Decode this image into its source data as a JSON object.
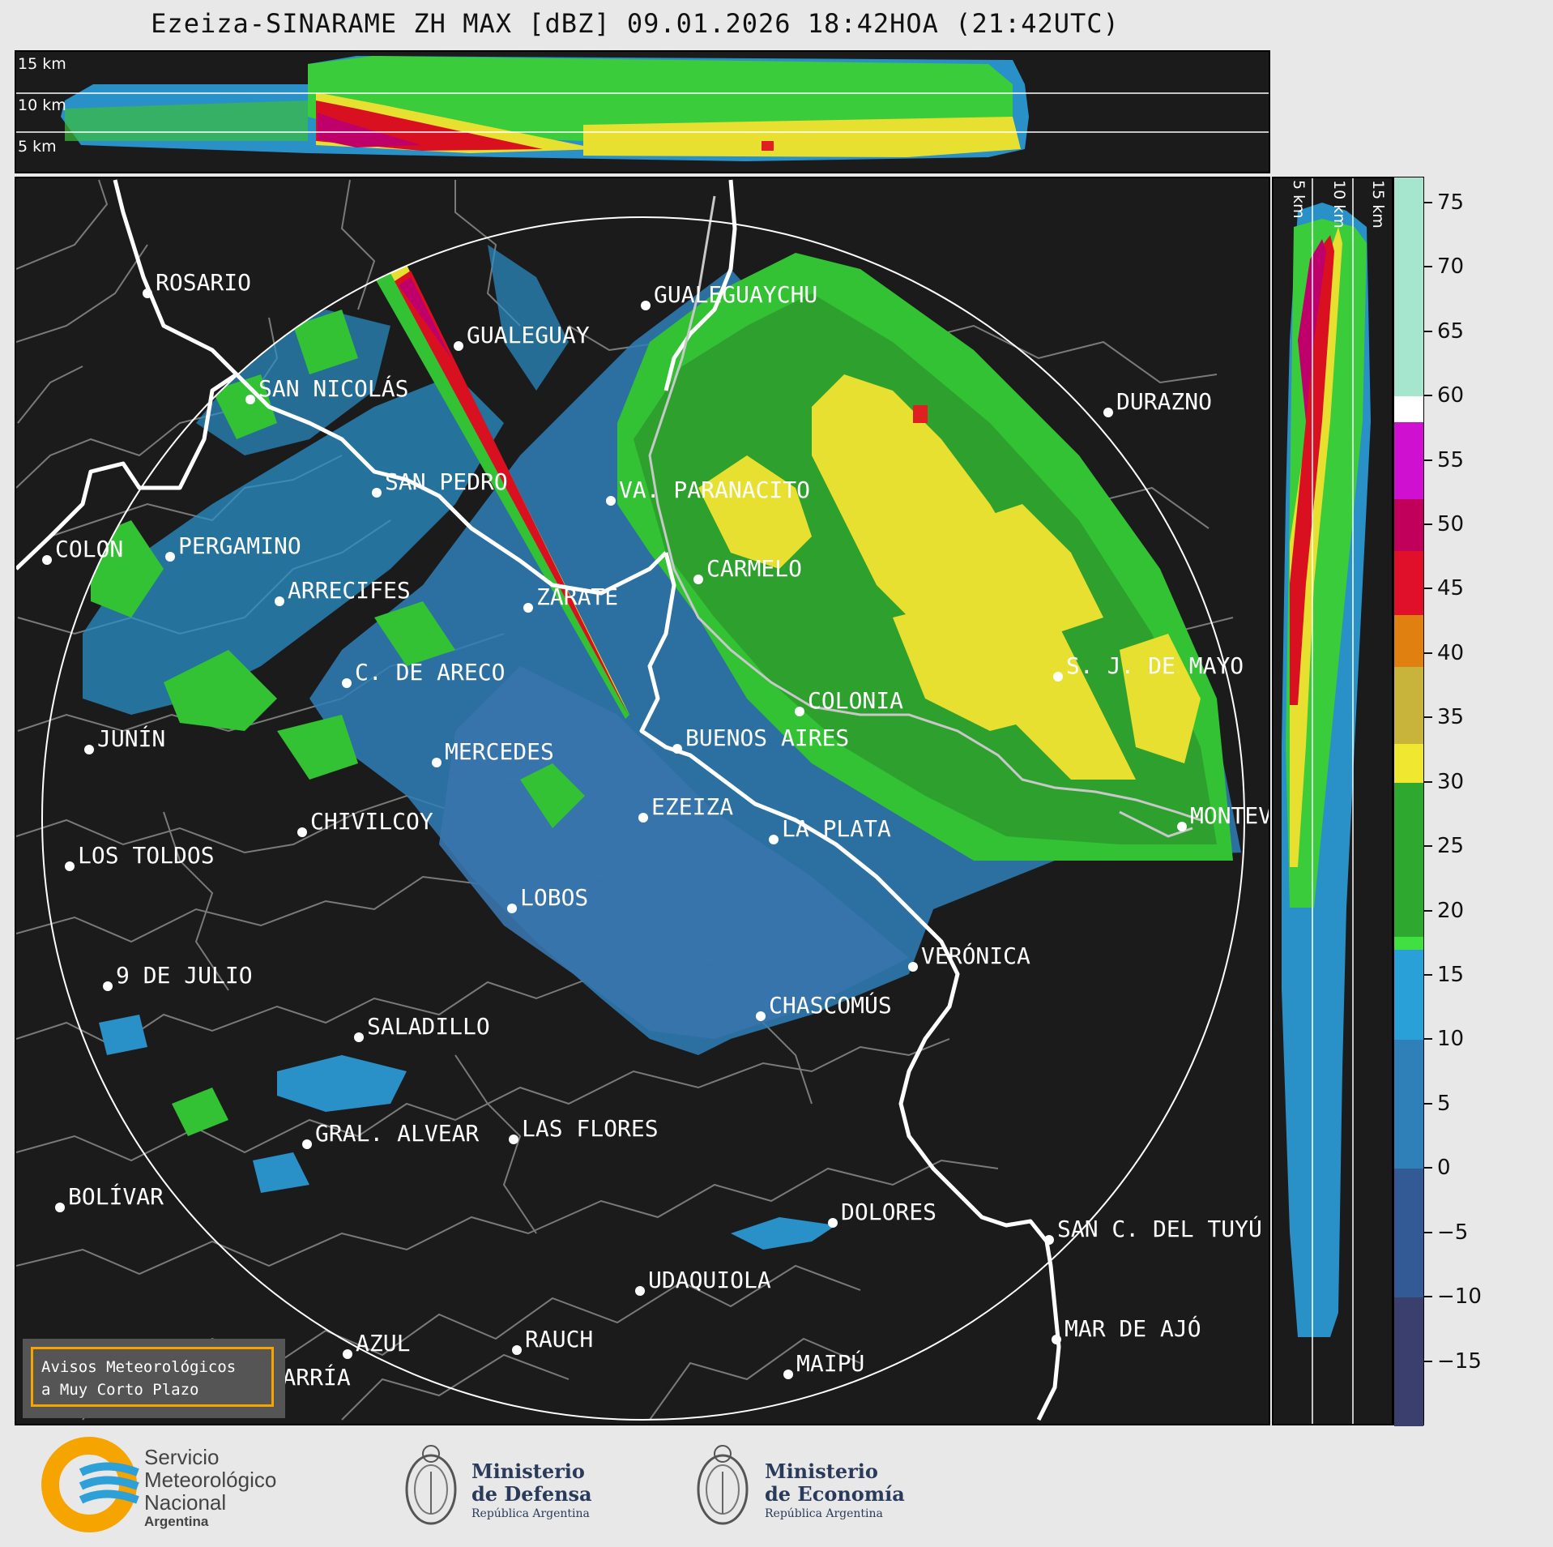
{
  "title": "Ezeiza-SINARAME ZH MAX [dBZ] 09.01.2026 18:42HOA (21:42UTC)",
  "top_panel": {
    "altitude_labels": [
      "15 km",
      "10 km",
      "5 km"
    ]
  },
  "side_panel": {
    "altitude_labels": [
      "5 km",
      "10 km",
      "15 km"
    ]
  },
  "colorbar": {
    "unit": "dBZ",
    "ticks": [
      "75",
      "70",
      "65",
      "60",
      "55",
      "50",
      "45",
      "40",
      "35",
      "30",
      "25",
      "20",
      "15",
      "10",
      "5",
      "0",
      "−5",
      "−10",
      "−15"
    ],
    "range": [
      -20,
      77
    ],
    "colors": [
      {
        "from": 60,
        "to": 77,
        "color": "#a6e6cf"
      },
      {
        "from": 58,
        "to": 60,
        "color": "#ffffff"
      },
      {
        "from": 52,
        "to": 58,
        "color": "#d010d0"
      },
      {
        "from": 48,
        "to": 52,
        "color": "#c0005a"
      },
      {
        "from": 43,
        "to": 48,
        "color": "#e0102a"
      },
      {
        "from": 39,
        "to": 43,
        "color": "#e08010"
      },
      {
        "from": 33,
        "to": 39,
        "color": "#c8b43a"
      },
      {
        "from": 30,
        "to": 33,
        "color": "#f0e830"
      },
      {
        "from": 18,
        "to": 30,
        "color": "#2ea82e"
      },
      {
        "from": 17,
        "to": 18,
        "color": "#40e040"
      },
      {
        "from": 10,
        "to": 17,
        "color": "#2aa0d8"
      },
      {
        "from": 0,
        "to": 10,
        "color": "#2f7fb8"
      },
      {
        "from": -10,
        "to": 0,
        "color": "#345a96"
      },
      {
        "from": -20,
        "to": -10,
        "color": "#3a3f6e"
      }
    ]
  },
  "cities": [
    {
      "name": "ROSARIO"
    },
    {
      "name": "GUALEGUAYCHU"
    },
    {
      "name": "GUALEGUAY"
    },
    {
      "name": "SAN NICOLÁS"
    },
    {
      "name": "DURAZNO"
    },
    {
      "name": "SAN PEDRO"
    },
    {
      "name": "VA. PARANACITO"
    },
    {
      "name": "COLON"
    },
    {
      "name": "PERGAMINO"
    },
    {
      "name": "CARMELO"
    },
    {
      "name": "ARRECIFES"
    },
    {
      "name": "ZÁRATE"
    },
    {
      "name": "C. DE ARECO"
    },
    {
      "name": "S. J. DE MAYO"
    },
    {
      "name": "COLONIA"
    },
    {
      "name": "JUNÍN"
    },
    {
      "name": "BUENOS AIRES"
    },
    {
      "name": "MERCEDES"
    },
    {
      "name": "EZEIZA"
    },
    {
      "name": "CHIVILCOY"
    },
    {
      "name": "LA PLATA"
    },
    {
      "name": "MONTEV"
    },
    {
      "name": "LOS TOLDOS"
    },
    {
      "name": "LOBOS"
    },
    {
      "name": "VERÓNICA"
    },
    {
      "name": "9 DE JULIO"
    },
    {
      "name": "CHASCOMÚS"
    },
    {
      "name": "SALADILLO"
    },
    {
      "name": "GRAL. ALVEAR"
    },
    {
      "name": "LAS FLORES"
    },
    {
      "name": "BOLÍVAR"
    },
    {
      "name": "DOLORES"
    },
    {
      "name": "SAN C. DEL TUYÚ"
    },
    {
      "name": "UDAQUIOLA"
    },
    {
      "name": "MAR DE AJÓ"
    },
    {
      "name": "RAUCH"
    },
    {
      "name": "AZUL"
    },
    {
      "name": "MAIPÚ"
    },
    {
      "name": "OLAVARRÍA"
    }
  ],
  "legend": {
    "line1": "Avisos Meteorológicos",
    "line2": "a Muy Corto Plazo"
  },
  "footer": {
    "smn": {
      "line1": "Servicio",
      "line2": "Meteorológico",
      "line3": "Nacional",
      "line4": "Argentina"
    },
    "defensa": {
      "line1": "Ministerio",
      "line2": "de Defensa",
      "line3": "República Argentina"
    },
    "economia": {
      "line1": "Ministerio",
      "line2": "de Economía",
      "line3": "República Argentina"
    }
  }
}
